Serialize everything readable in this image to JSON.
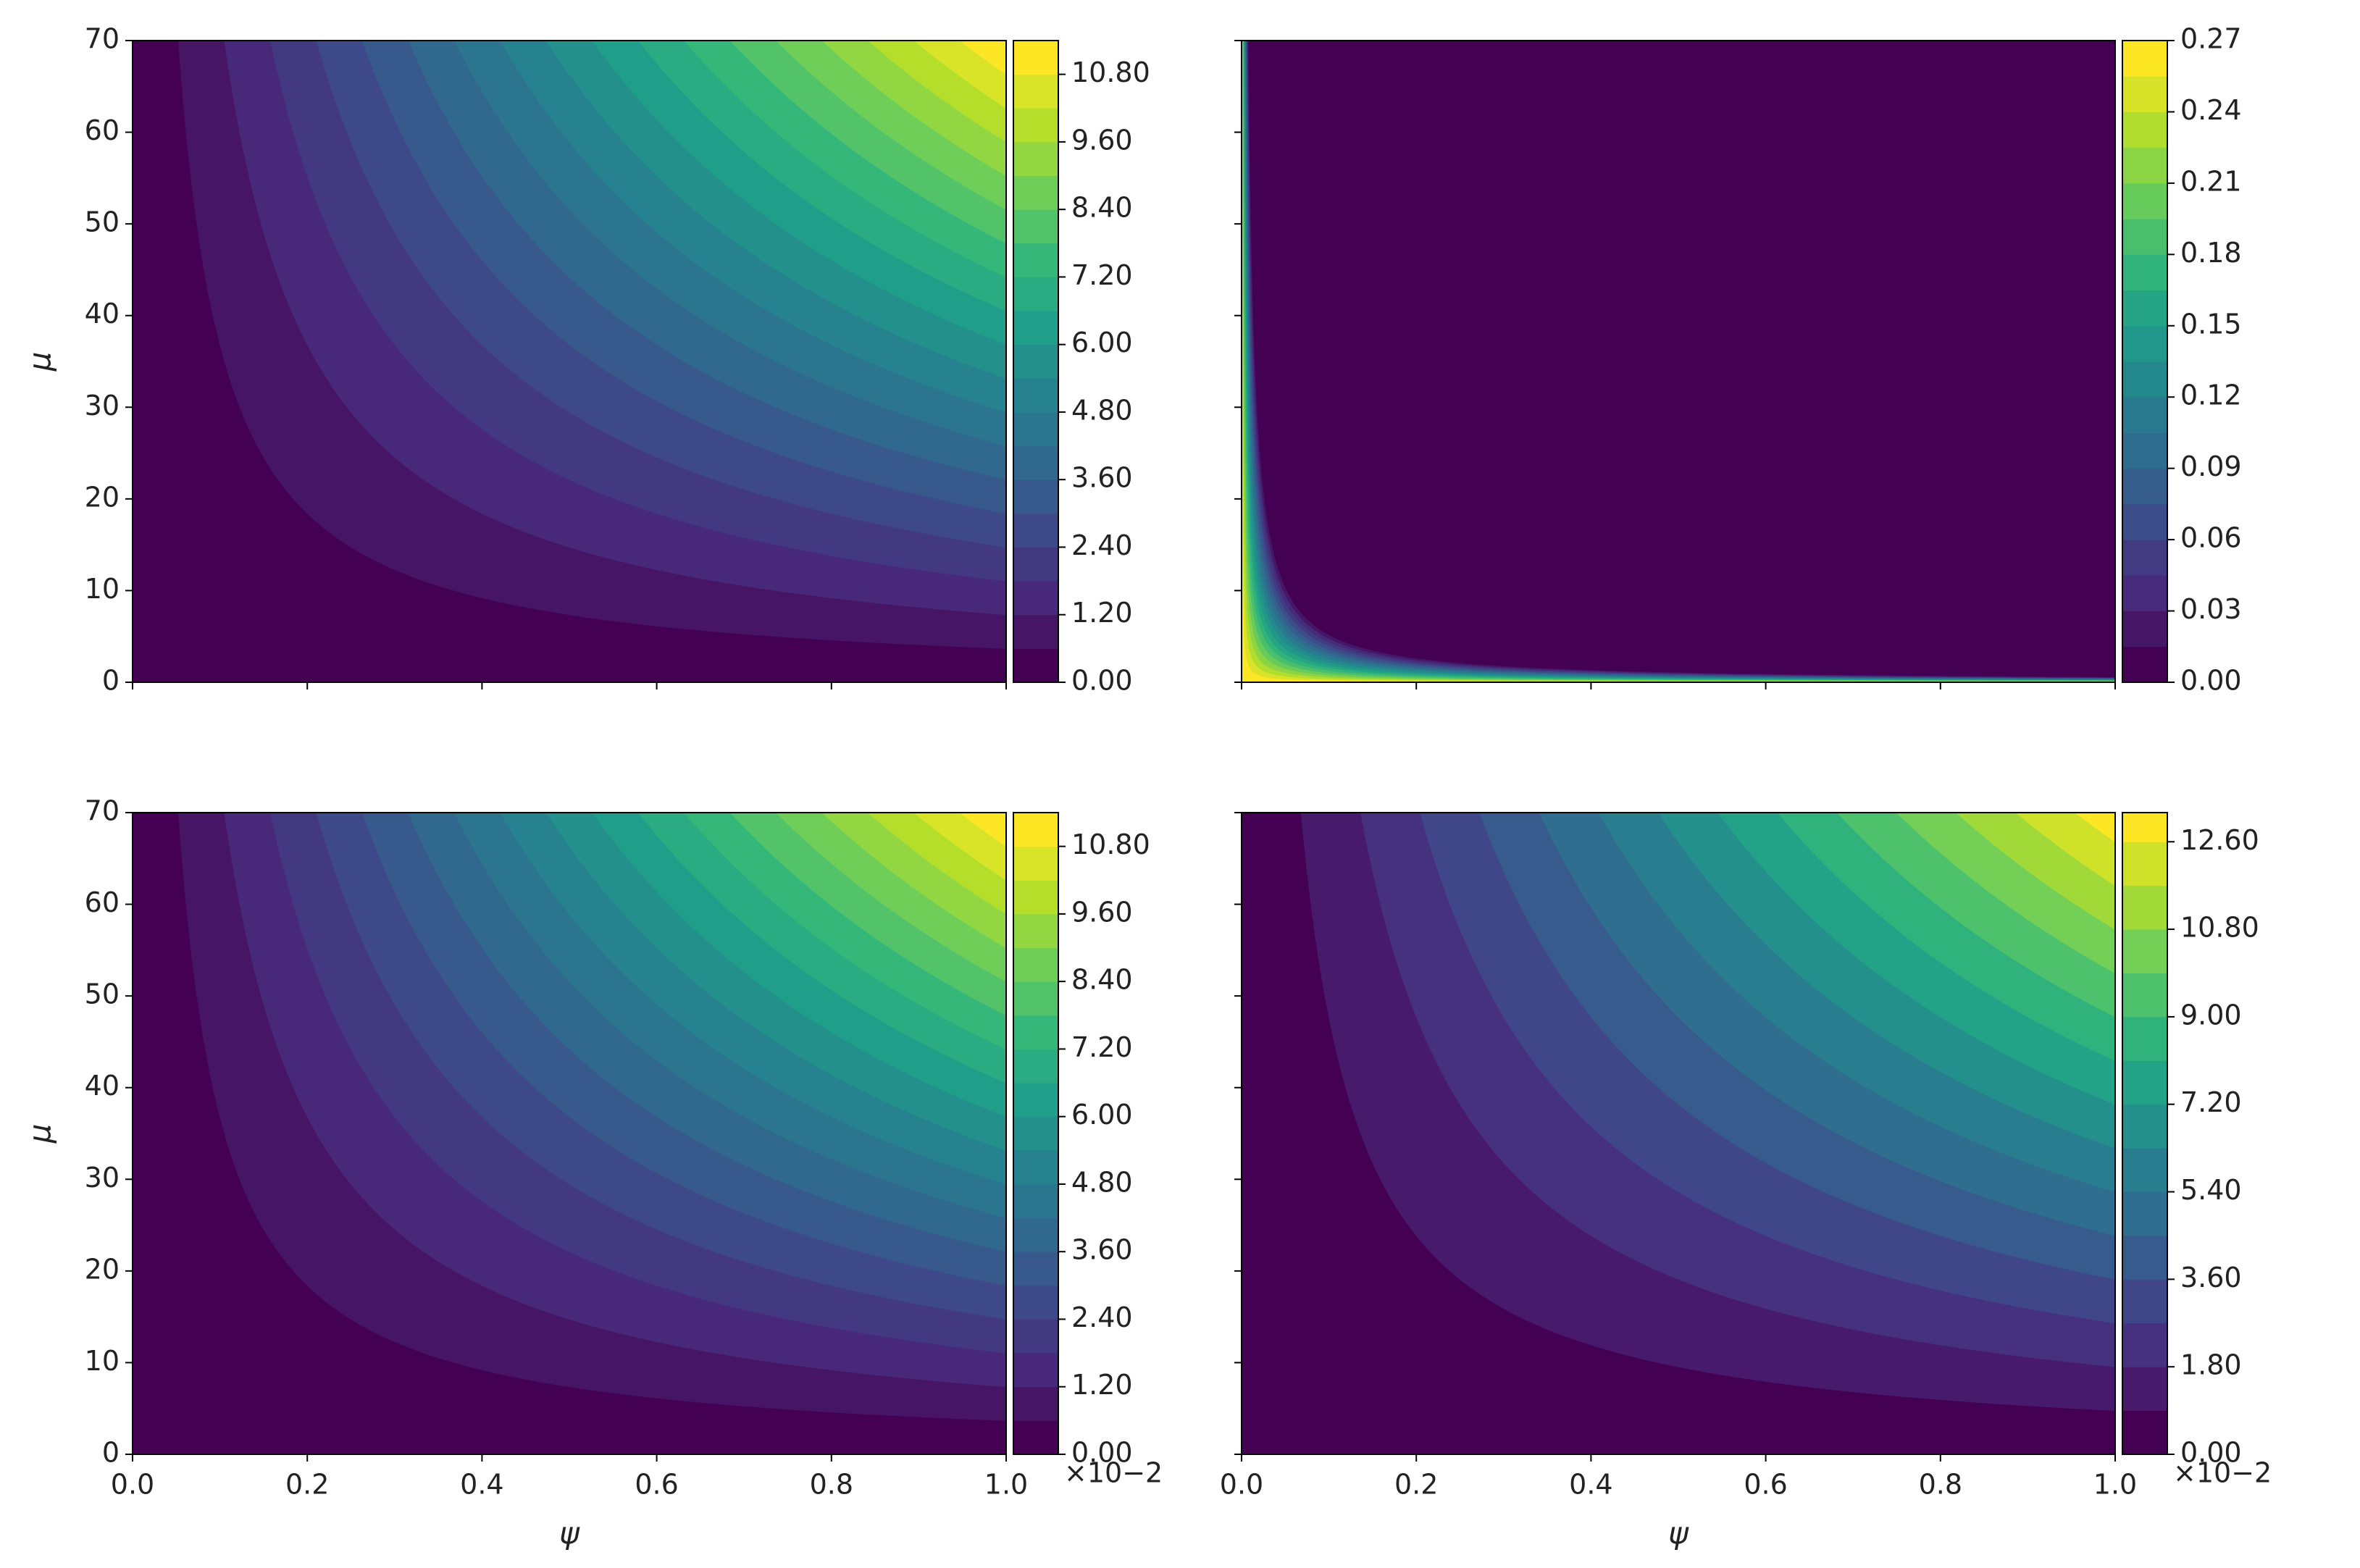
{
  "chart_data": [
    {
      "type": "contour",
      "field": "product",
      "colormap": "viridis",
      "ylabel": "μ",
      "xlim": [
        0,
        1
      ],
      "ylim": [
        0,
        70
      ],
      "show_xtick_labels": false,
      "show_ytick_labels": true,
      "xticks": [
        {
          "value": 0,
          "label": "0.0"
        },
        {
          "value": 0.2,
          "label": "0.2"
        },
        {
          "value": 0.4,
          "label": "0.4"
        },
        {
          "value": 0.6,
          "label": "0.6"
        },
        {
          "value": 0.8,
          "label": "0.8"
        },
        {
          "value": 1,
          "label": "1.0"
        }
      ],
      "yticks": [
        0,
        10,
        20,
        30,
        40,
        50,
        60,
        70
      ],
      "levels": [
        0,
        0.6,
        1.2,
        1.8,
        2.4,
        3.0,
        3.6,
        4.2,
        4.8,
        5.4,
        6.0,
        6.6,
        7.2,
        7.8,
        8.4,
        9.0,
        9.6,
        10.2,
        10.8,
        11.4
      ],
      "colorbar_ticks": [
        {
          "value": 0,
          "label": "0.00"
        },
        {
          "value": 1.2,
          "label": "1.20"
        },
        {
          "value": 2.4,
          "label": "2.40"
        },
        {
          "value": 3.6,
          "label": "3.60"
        },
        {
          "value": 4.8,
          "label": "4.80"
        },
        {
          "value": 6.0,
          "label": "6.00"
        },
        {
          "value": 7.2,
          "label": "7.20"
        },
        {
          "value": 8.4,
          "label": "8.40"
        },
        {
          "value": 9.6,
          "label": "9.60"
        },
        {
          "value": 10.8,
          "label": "10.80"
        }
      ]
    },
    {
      "type": "contour",
      "field": "decay",
      "colormap": "viridis",
      "xlim": [
        0,
        1
      ],
      "ylim": [
        0,
        70
      ],
      "show_xtick_labels": false,
      "show_ytick_labels": false,
      "xticks": [
        {
          "value": 0,
          "label": "0.0"
        },
        {
          "value": 0.2,
          "label": "0.2"
        },
        {
          "value": 0.4,
          "label": "0.4"
        },
        {
          "value": 0.6,
          "label": "0.6"
        },
        {
          "value": 0.8,
          "label": "0.8"
        },
        {
          "value": 1,
          "label": "1.0"
        }
      ],
      "yticks": [
        0,
        10,
        20,
        30,
        40,
        50,
        60,
        70
      ],
      "levels": [
        0,
        0.015,
        0.03,
        0.045,
        0.06,
        0.075,
        0.09,
        0.105,
        0.12,
        0.135,
        0.15,
        0.165,
        0.18,
        0.195,
        0.21,
        0.225,
        0.24,
        0.255,
        0.27
      ],
      "colorbar_ticks": [
        {
          "value": 0,
          "label": "0.00"
        },
        {
          "value": 0.03,
          "label": "0.03"
        },
        {
          "value": 0.06,
          "label": "0.06"
        },
        {
          "value": 0.09,
          "label": "0.09"
        },
        {
          "value": 0.12,
          "label": "0.12"
        },
        {
          "value": 0.15,
          "label": "0.15"
        },
        {
          "value": 0.18,
          "label": "0.18"
        },
        {
          "value": 0.21,
          "label": "0.21"
        },
        {
          "value": 0.24,
          "label": "0.24"
        },
        {
          "value": 0.27,
          "label": "0.27"
        }
      ]
    },
    {
      "type": "contour",
      "field": "product",
      "colormap": "viridis",
      "ylabel": "μ",
      "xlabel": "ψ",
      "colorbar_offset": "×10−2",
      "xlim": [
        0,
        1
      ],
      "ylim": [
        0,
        70
      ],
      "show_xtick_labels": true,
      "show_ytick_labels": true,
      "xticks": [
        {
          "value": 0,
          "label": "0.0"
        },
        {
          "value": 0.2,
          "label": "0.2"
        },
        {
          "value": 0.4,
          "label": "0.4"
        },
        {
          "value": 0.6,
          "label": "0.6"
        },
        {
          "value": 0.8,
          "label": "0.8"
        },
        {
          "value": 1,
          "label": "1.0"
        }
      ],
      "yticks": [
        0,
        10,
        20,
        30,
        40,
        50,
        60,
        70
      ],
      "levels": [
        0,
        0.6,
        1.2,
        1.8,
        2.4,
        3.0,
        3.6,
        4.2,
        4.8,
        5.4,
        6.0,
        6.6,
        7.2,
        7.8,
        8.4,
        9.0,
        9.6,
        10.2,
        10.8,
        11.4
      ],
      "colorbar_ticks": [
        {
          "value": 0,
          "label": "0.00"
        },
        {
          "value": 1.2,
          "label": "1.20"
        },
        {
          "value": 2.4,
          "label": "2.40"
        },
        {
          "value": 3.6,
          "label": "3.60"
        },
        {
          "value": 4.8,
          "label": "4.80"
        },
        {
          "value": 6.0,
          "label": "6.00"
        },
        {
          "value": 7.2,
          "label": "7.20"
        },
        {
          "value": 8.4,
          "label": "8.40"
        },
        {
          "value": 9.6,
          "label": "9.60"
        },
        {
          "value": 10.8,
          "label": "10.80"
        }
      ]
    },
    {
      "type": "contour",
      "field": "product",
      "colormap": "viridis",
      "xlabel": "ψ",
      "colorbar_offset": "×10−2",
      "xlim": [
        0,
        1
      ],
      "ylim": [
        0,
        70
      ],
      "show_xtick_labels": true,
      "show_ytick_labels": false,
      "xticks": [
        {
          "value": 0,
          "label": "0.0"
        },
        {
          "value": 0.2,
          "label": "0.2"
        },
        {
          "value": 0.4,
          "label": "0.4"
        },
        {
          "value": 0.6,
          "label": "0.6"
        },
        {
          "value": 0.8,
          "label": "0.8"
        },
        {
          "value": 1,
          "label": "1.0"
        }
      ],
      "yticks": [
        0,
        10,
        20,
        30,
        40,
        50,
        60,
        70
      ],
      "levels": [
        0,
        0.9,
        1.8,
        2.7,
        3.6,
        4.5,
        5.4,
        6.3,
        7.2,
        8.1,
        9.0,
        9.9,
        10.8,
        11.7,
        12.6,
        13.2
      ],
      "colorbar_ticks": [
        {
          "value": 0,
          "label": "0.00"
        },
        {
          "value": 1.8,
          "label": "1.80"
        },
        {
          "value": 3.6,
          "label": "3.60"
        },
        {
          "value": 5.4,
          "label": "5.40"
        },
        {
          "value": 7.2,
          "label": "7.20"
        },
        {
          "value": 9.0,
          "label": "9.00"
        },
        {
          "value": 10.8,
          "label": "10.80"
        },
        {
          "value": 12.6,
          "label": "12.60"
        }
      ]
    }
  ]
}
